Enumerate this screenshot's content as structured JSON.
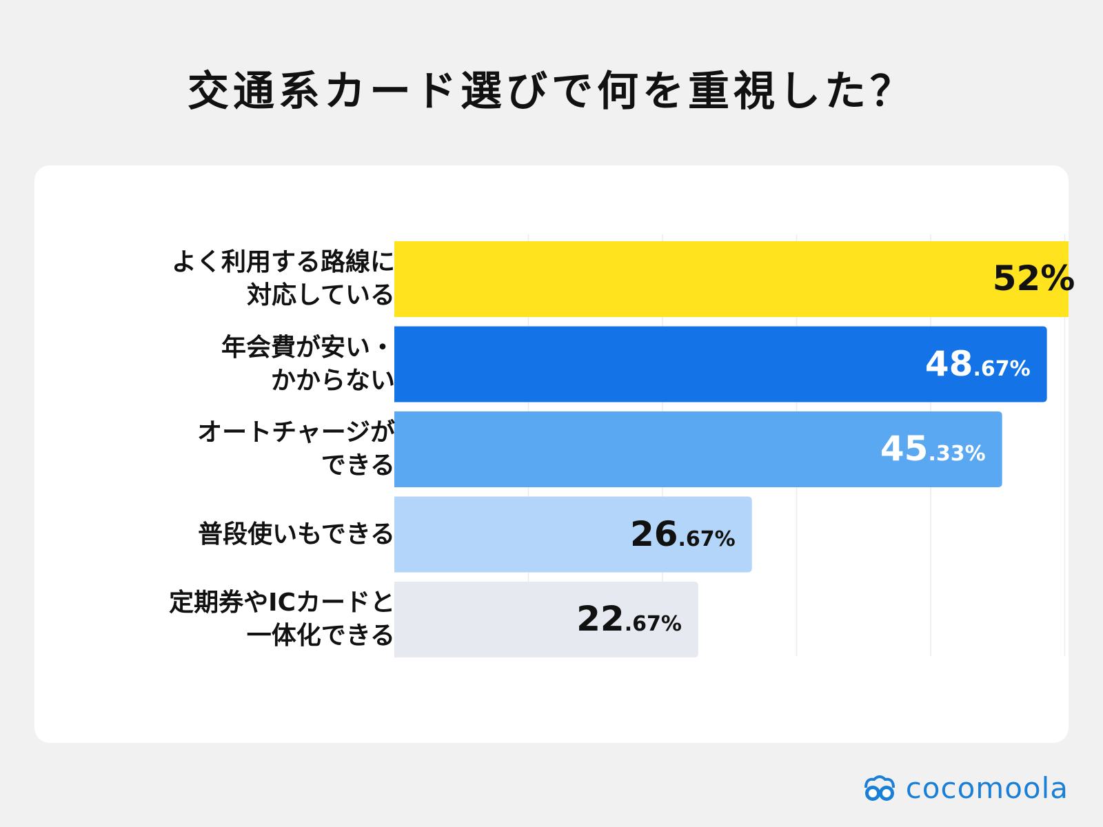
{
  "title": "交通系カード選びで何を重視した？",
  "brand": {
    "name": "cocomoola",
    "color": "#1a7fd6"
  },
  "chart_data": {
    "type": "bar",
    "orientation": "horizontal",
    "title": "交通系カード選びで何を重視した？",
    "xlim": [
      0,
      60
    ],
    "grid": true,
    "grid_step": 10,
    "legend": "none",
    "unit": "%",
    "categories": [
      {
        "lines": [
          "よく利用する路線に",
          "対応している"
        ]
      },
      {
        "lines": [
          "年会費が安い・",
          "かからない"
        ]
      },
      {
        "lines": [
          "オートチャージが",
          "できる"
        ]
      },
      {
        "lines": [
          "普段使いもできる"
        ]
      },
      {
        "lines": [
          "定期券やICカードと",
          "一体化できる"
        ]
      }
    ],
    "values": [
      52,
      48.67,
      45.33,
      26.67,
      22.67
    ],
    "value_labels": [
      {
        "int": "52",
        "dec": "%"
      },
      {
        "int": "48",
        "dec": ".67%"
      },
      {
        "int": "45",
        "dec": ".33%"
      },
      {
        "int": "26",
        "dec": ".67%"
      },
      {
        "int": "22",
        "dec": ".67%"
      }
    ],
    "colors": [
      "#ffe31e",
      "#1473e6",
      "#5aa8f2",
      "#b3d5f9",
      "#e6eaf0"
    ],
    "label_colors": [
      "#111111",
      "#ffffff",
      "#ffffff",
      "#111111",
      "#111111"
    ]
  }
}
